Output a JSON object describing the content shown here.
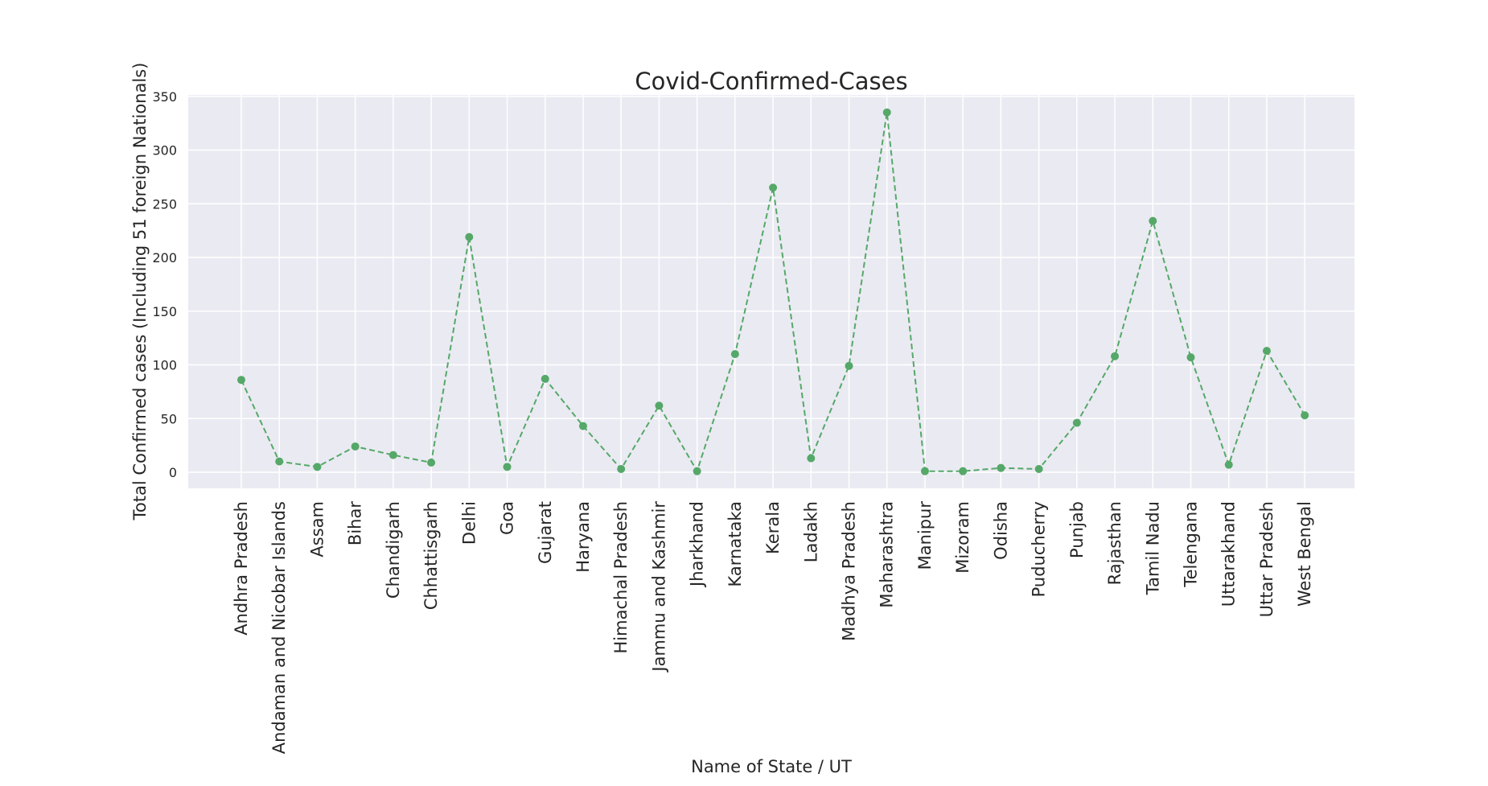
{
  "chart_data": {
    "type": "line",
    "title": "Covid-Confirmed-Cases",
    "xlabel": "Name of State / UT",
    "ylabel": "Total Confirmed cases (Including 51 foreign Nationals)",
    "ylim": [
      -15,
      350
    ],
    "yticks": [
      0,
      50,
      100,
      150,
      200,
      250,
      300,
      350
    ],
    "grid": true,
    "line_style": "dashed",
    "marker": "circle",
    "colors": {
      "line": "#55a868",
      "plot_bg": "#eaeaf2",
      "grid": "#ffffff",
      "text": "#262626"
    },
    "categories": [
      "Andhra Pradesh",
      "Andaman and Nicobar Islands",
      "Assam",
      "Bihar",
      "Chandigarh",
      "Chhattisgarh",
      "Delhi",
      "Goa",
      "Gujarat",
      "Haryana",
      "Himachal Pradesh",
      "Jammu and Kashmir",
      "Jharkhand",
      "Karnataka",
      "Kerala",
      "Ladakh",
      "Madhya Pradesh",
      "Maharashtra",
      "Manipur",
      "Mizoram",
      "Odisha",
      "Puducherry",
      "Punjab",
      "Rajasthan",
      "Tamil Nadu",
      "Telengana",
      "Uttarakhand",
      "Uttar Pradesh",
      "West Bengal"
    ],
    "values": [
      86,
      10,
      5,
      24,
      16,
      9,
      219,
      5,
      87,
      43,
      3,
      62,
      1,
      110,
      265,
      13,
      99,
      335,
      1,
      1,
      4,
      3,
      46,
      108,
      234,
      107,
      7,
      113,
      53
    ]
  }
}
